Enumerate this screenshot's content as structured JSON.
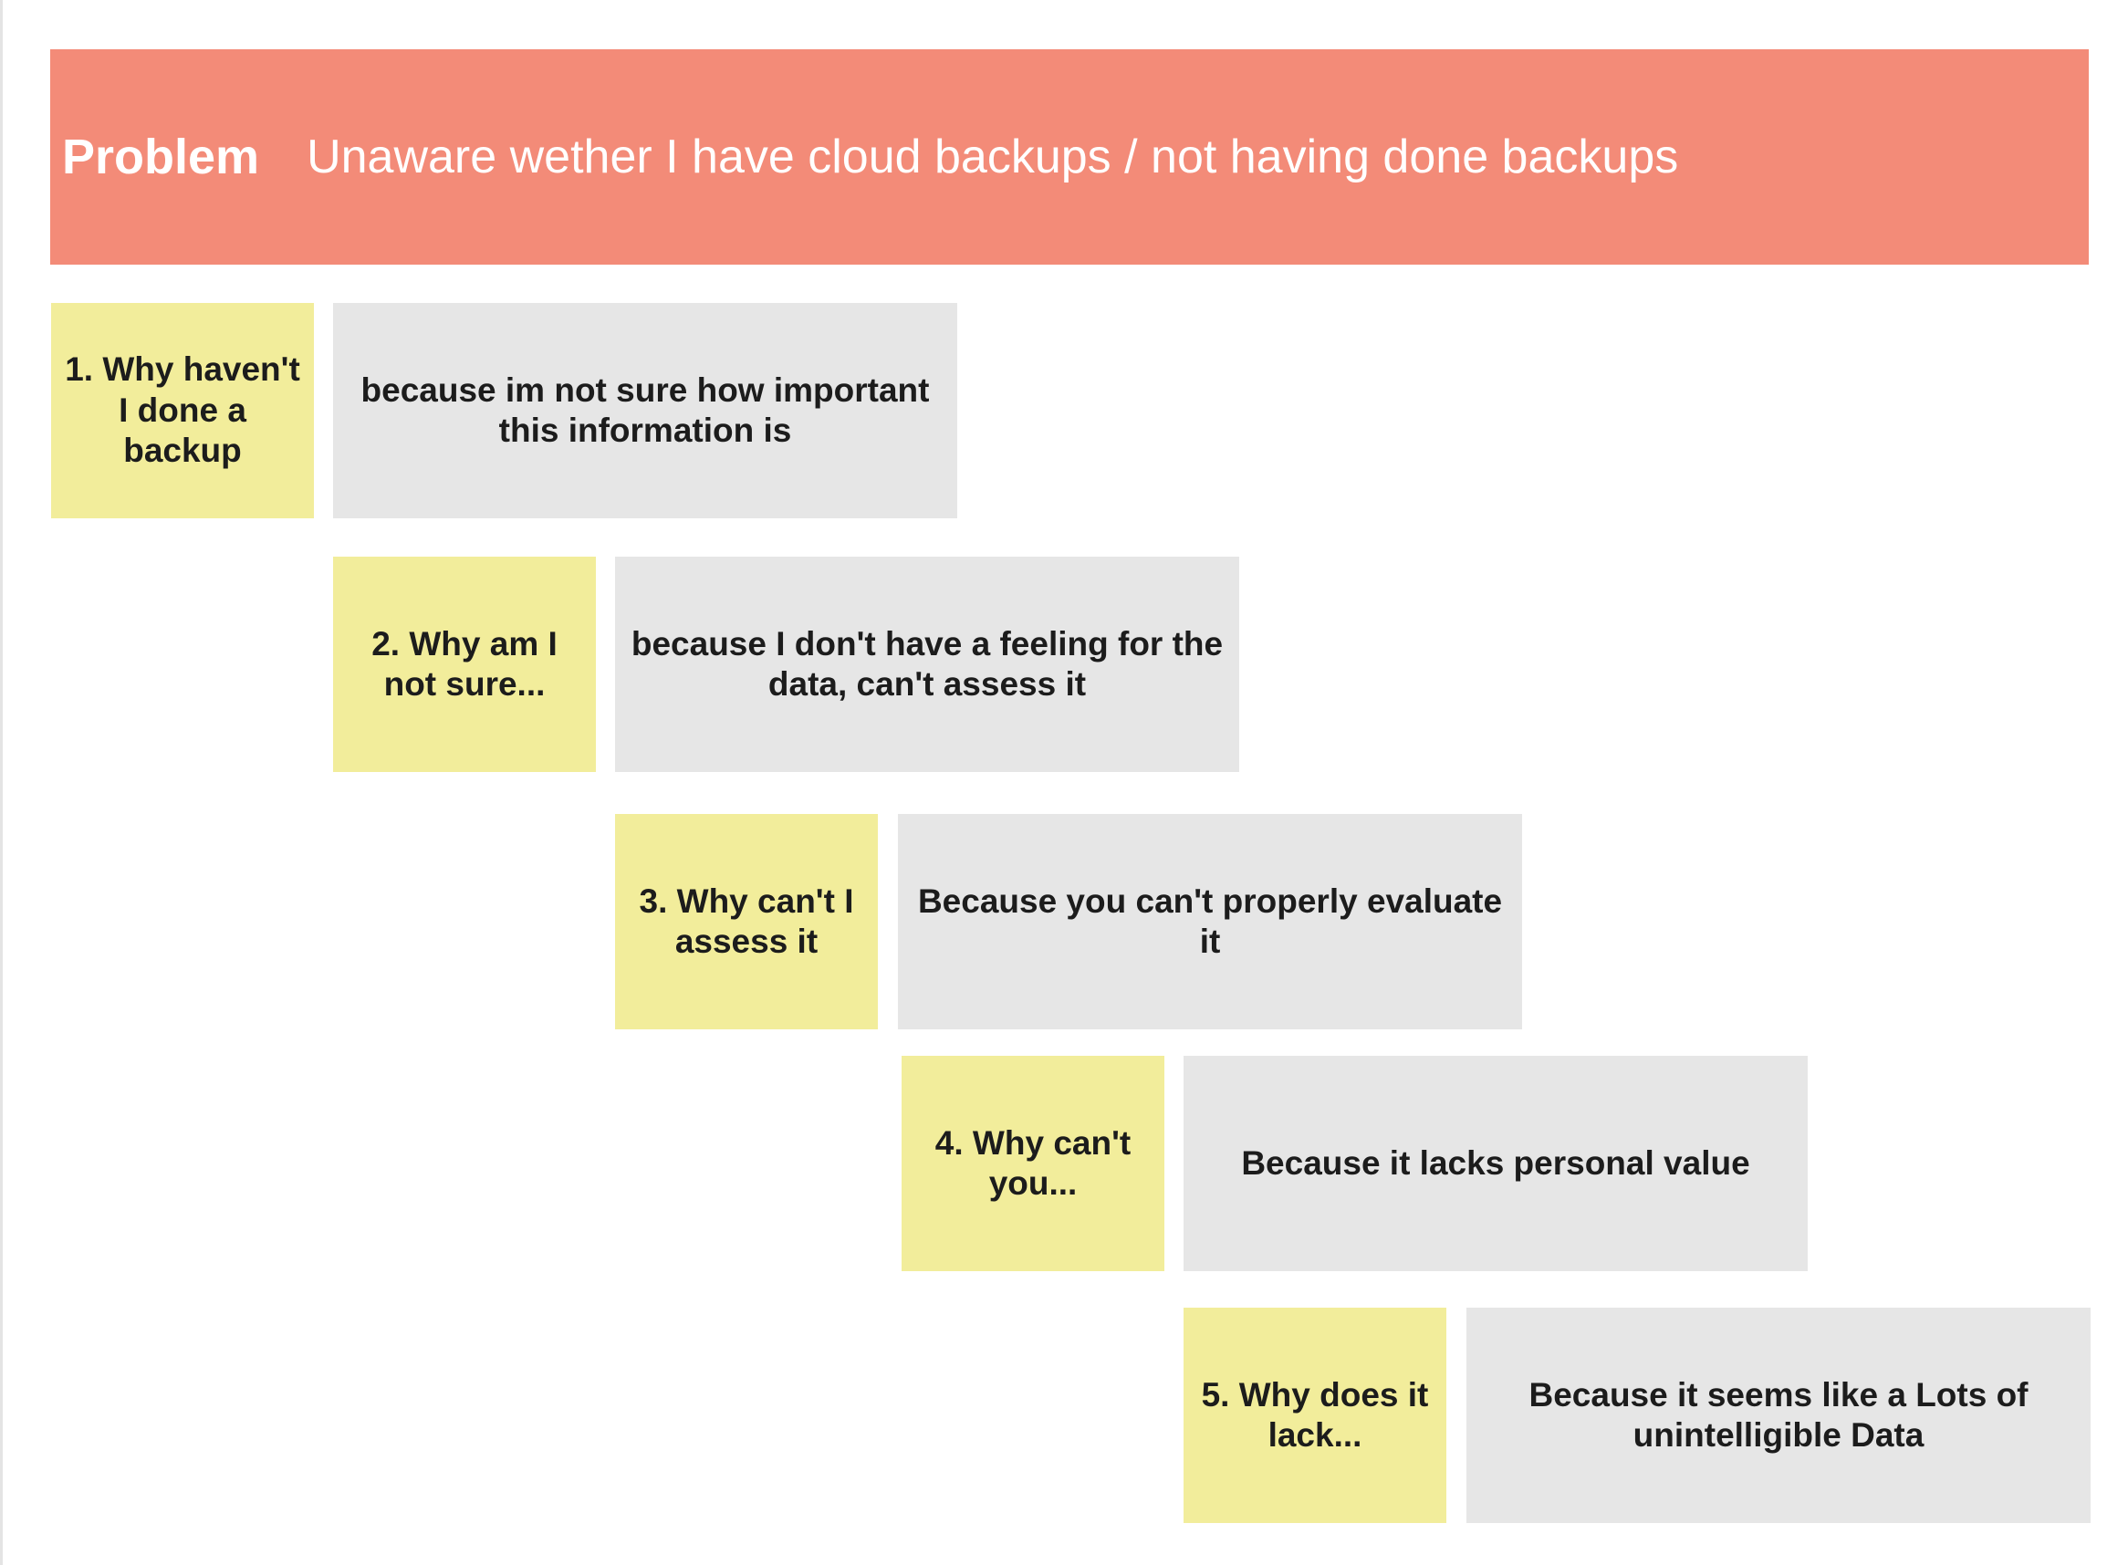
{
  "problem": {
    "label": "Problem",
    "text": "Unaware wether I have cloud backups / not having done backups",
    "color": "#f38b78"
  },
  "colors": {
    "question": "#f2ed9b",
    "answer": "#e6e6e6"
  },
  "steps": [
    {
      "question": "1. Why haven't I done a backup",
      "answer": "because im not sure how important this information is"
    },
    {
      "question": "2. Why am I not sure...",
      "answer": "because I don't have a feeling for the data, can't assess it"
    },
    {
      "question": "3. Why can't I assess it",
      "answer": "Because you can't properly evaluate it"
    },
    {
      "question": "4. Why can't you...",
      "answer": "Because it lacks personal value"
    },
    {
      "question": "5. Why does it lack...",
      "answer": "Because it seems like a Lots of unintelligible Data"
    }
  ]
}
